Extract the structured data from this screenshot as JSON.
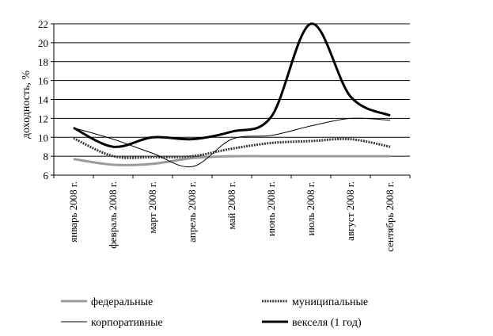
{
  "chart_data": {
    "type": "line",
    "title": "",
    "xlabel": "",
    "ylabel": "доходность, %",
    "ylim": [
      6,
      22
    ],
    "yticks": [
      6,
      8,
      10,
      12,
      14,
      16,
      18,
      20,
      22
    ],
    "grid": true,
    "legend_position": "bottom",
    "categories": [
      "январь 2008 г.",
      "февраль 2008 г.",
      "март 2008 г.",
      "апрель 2008 г.",
      "май 2008 г.",
      "июнь 2008 г.",
      "июль 2008 г.",
      "август 2008 г.",
      "сентябрь 2008 г."
    ],
    "series": [
      {
        "name": "федеральные",
        "values": [
          7.7,
          7.1,
          7.2,
          7.8,
          8.0,
          8.0,
          8.0,
          8.0,
          8.0
        ],
        "color": "#9a9a9a",
        "style": "thick-gray"
      },
      {
        "name": "муниципальные",
        "values": [
          9.9,
          8.0,
          7.9,
          8.0,
          8.8,
          9.4,
          9.6,
          9.8,
          9.0
        ],
        "color": "#3a3a3a",
        "style": "dotted-thick"
      },
      {
        "name": "корпоративные",
        "values": [
          11.0,
          9.8,
          8.3,
          6.9,
          9.8,
          10.2,
          11.2,
          12.0,
          11.8
        ],
        "color": "#000000",
        "style": "thin"
      },
      {
        "name": "векселя (1 год)",
        "values": [
          11.0,
          9.0,
          10.0,
          9.8,
          10.6,
          12.2,
          22.0,
          14.3,
          12.3
        ],
        "color": "#000000",
        "style": "thick"
      }
    ]
  }
}
